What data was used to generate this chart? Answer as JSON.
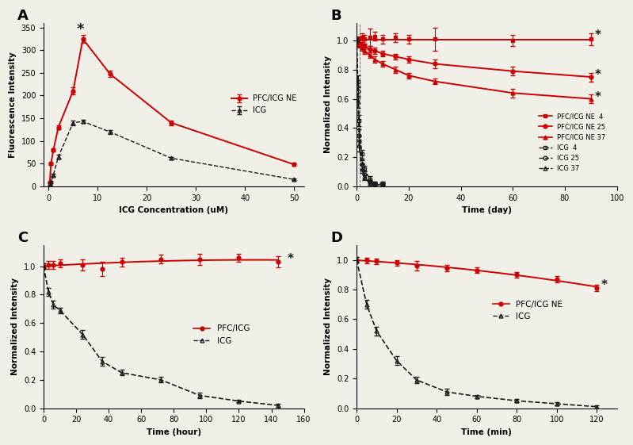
{
  "panel_A": {
    "xlabel": "ICG Concentration (uM)",
    "ylabel": "Fluorescence Intensity",
    "pfc_x": [
      0.25,
      0.5,
      1,
      2,
      5,
      7,
      12.5,
      25,
      50
    ],
    "pfc_y": [
      8,
      50,
      80,
      130,
      210,
      325,
      248,
      140,
      48
    ],
    "pfc_yerr": [
      2,
      3,
      4,
      5,
      8,
      8,
      7,
      5,
      3
    ],
    "icg_x": [
      0.25,
      0.5,
      1,
      2,
      5,
      7,
      12.5,
      25,
      50
    ],
    "icg_y": [
      2,
      10,
      25,
      65,
      140,
      143,
      120,
      62,
      15
    ],
    "icg_yerr": [
      1,
      2,
      3,
      4,
      5,
      4,
      4,
      3,
      2
    ],
    "star_x": 6.5,
    "star_y": 338,
    "ylim": [
      0,
      360
    ],
    "yticks": [
      0,
      50,
      100,
      150,
      200,
      250,
      300,
      350
    ],
    "xticks": [
      0,
      10,
      20,
      30,
      40,
      50
    ],
    "xlim": [
      -1,
      52
    ]
  },
  "panel_B": {
    "xlabel": "Time (day)",
    "ylabel": "Normalized Intensity",
    "pfc4_x": [
      0,
      1,
      2,
      3,
      5,
      7,
      10,
      15,
      20,
      30,
      60,
      90
    ],
    "pfc4_y": [
      1.0,
      1.01,
      1.02,
      1.01,
      1.02,
      1.03,
      1.01,
      1.02,
      1.01,
      1.01,
      1.0,
      1.01
    ],
    "pfc4_yerr": [
      0.02,
      0.02,
      0.03,
      0.03,
      0.06,
      0.03,
      0.03,
      0.03,
      0.03,
      0.08,
      0.04,
      0.04
    ],
    "pfc25_x": [
      0,
      1,
      2,
      3,
      5,
      7,
      10,
      15,
      20,
      30,
      60,
      90
    ],
    "pfc25_y": [
      1.0,
      0.98,
      0.97,
      0.96,
      0.94,
      0.93,
      0.91,
      0.89,
      0.87,
      0.84,
      0.79,
      0.75
    ],
    "pfc25_yerr": [
      0.02,
      0.02,
      0.02,
      0.02,
      0.02,
      0.02,
      0.02,
      0.02,
      0.02,
      0.03,
      0.03,
      0.03
    ],
    "pfc37_x": [
      0,
      1,
      2,
      3,
      5,
      7,
      10,
      15,
      20,
      30,
      60,
      90
    ],
    "pfc37_y": [
      1.0,
      0.97,
      0.95,
      0.93,
      0.9,
      0.87,
      0.84,
      0.8,
      0.76,
      0.72,
      0.64,
      0.6
    ],
    "pfc37_yerr": [
      0.02,
      0.02,
      0.02,
      0.02,
      0.02,
      0.02,
      0.02,
      0.02,
      0.02,
      0.02,
      0.03,
      0.03
    ],
    "icg4_x": [
      0,
      0.5,
      1,
      2,
      3,
      5,
      7,
      10
    ],
    "icg4_y": [
      1.0,
      0.72,
      0.45,
      0.22,
      0.12,
      0.05,
      0.02,
      0.02
    ],
    "icg4_yerr": [
      0.02,
      0.04,
      0.04,
      0.03,
      0.02,
      0.02,
      0.01,
      0.01
    ],
    "icg25_x": [
      0,
      0.5,
      1,
      2,
      3,
      5,
      7,
      10
    ],
    "icg25_y": [
      1.0,
      0.65,
      0.35,
      0.15,
      0.08,
      0.03,
      0.01,
      0.01
    ],
    "icg25_yerr": [
      0.02,
      0.04,
      0.04,
      0.03,
      0.02,
      0.01,
      0.01,
      0.01
    ],
    "icg37_x": [
      0,
      0.5,
      1,
      2,
      3,
      5,
      7,
      10
    ],
    "icg37_y": [
      1.0,
      0.58,
      0.28,
      0.12,
      0.06,
      0.02,
      0.01,
      0.01
    ],
    "icg37_yerr": [
      0.02,
      0.04,
      0.04,
      0.03,
      0.02,
      0.01,
      0.01,
      0.01
    ],
    "star4_y": 1.035,
    "star25_y": 0.765,
    "star37_y": 0.612,
    "ylim": [
      0.0,
      1.12
    ],
    "yticks": [
      0.0,
      0.2,
      0.4,
      0.6,
      0.8,
      1.0
    ],
    "xlim": [
      0,
      100
    ],
    "vline_x": 1.2
  },
  "panel_C": {
    "xlabel": "Time (hour)",
    "ylabel": "Normalized Intensity",
    "pfc_x": [
      0,
      3,
      6,
      10,
      24,
      36,
      48,
      72,
      96,
      120,
      144
    ],
    "pfc_y": [
      1.0,
      1.01,
      1.01,
      1.02,
      1.01,
      0.98,
      1.03,
      1.05,
      1.05,
      1.06,
      1.03
    ],
    "pfc_yerr": [
      0.02,
      0.03,
      0.03,
      0.03,
      0.04,
      0.05,
      0.03,
      0.03,
      0.04,
      0.03,
      0.04
    ],
    "icg_x": [
      0,
      3,
      6,
      10,
      24,
      36,
      48,
      72,
      96,
      120,
      144
    ],
    "icg_y": [
      1.0,
      0.82,
      0.73,
      0.69,
      0.52,
      0.33,
      0.25,
      0.2,
      0.09,
      0.05,
      0.02
    ],
    "icg_yerr": [
      0.02,
      0.03,
      0.03,
      0.02,
      0.03,
      0.03,
      0.02,
      0.02,
      0.02,
      0.01,
      0.01
    ],
    "star_y": 1.05,
    "ylim": [
      0.0,
      1.15
    ],
    "yticks": [
      0.0,
      0.2,
      0.4,
      0.6,
      0.8,
      1.0
    ],
    "xlim": [
      0,
      160
    ]
  },
  "panel_D": {
    "xlabel": "Time (min)",
    "ylabel": "Normalized Intensity",
    "pfc_x": [
      0,
      5,
      10,
      20,
      30,
      45,
      60,
      80,
      100,
      120
    ],
    "pfc_y": [
      1.0,
      0.995,
      0.99,
      0.98,
      0.96,
      0.945,
      0.93,
      0.9,
      0.87,
      0.81
    ],
    "pfc_yerr": [
      0.02,
      0.02,
      0.02,
      0.02,
      0.03,
      0.02,
      0.02,
      0.02,
      0.02,
      0.02
    ],
    "icg_x": [
      0,
      5,
      10,
      20,
      30,
      45,
      60,
      80,
      100,
      120
    ],
    "icg_y": [
      1.0,
      0.7,
      0.52,
      0.32,
      0.19,
      0.11,
      0.08,
      0.05,
      0.03,
      0.01
    ],
    "icg_yerr": [
      0.02,
      0.03,
      0.03,
      0.03,
      0.02,
      0.02,
      0.01,
      0.01,
      0.01,
      0.01
    ],
    "star_y": 0.83,
    "ylim": [
      0.0,
      1.1
    ],
    "yticks": [
      0.0,
      0.2,
      0.4,
      0.6,
      0.8,
      1.0
    ],
    "xlim": [
      0,
      130
    ]
  },
  "red_color": "#cc0000",
  "black_color": "#1a1a1a",
  "bg_color": "#f0efe8"
}
